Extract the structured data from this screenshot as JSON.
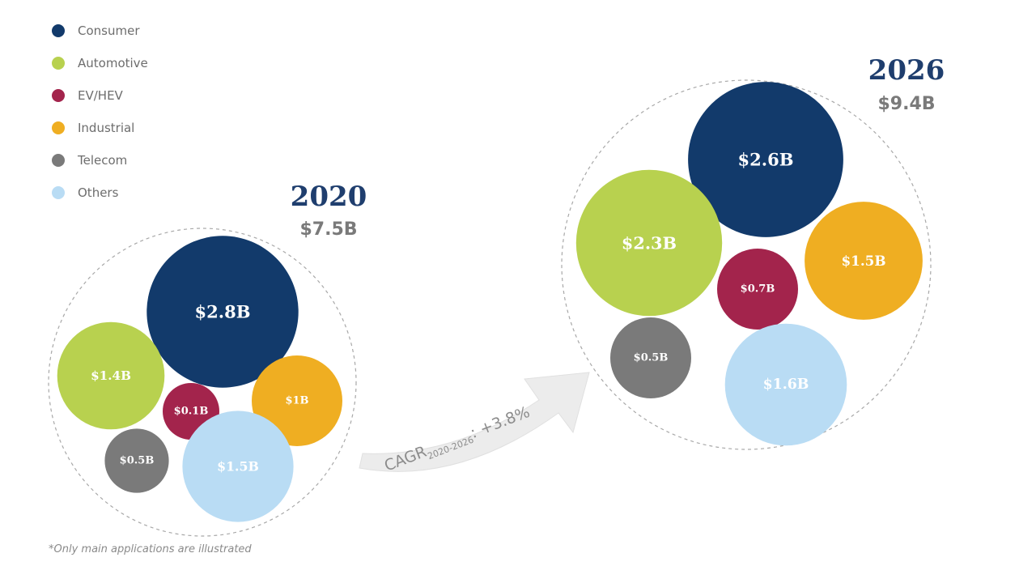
{
  "legend": [
    {
      "name": "Consumer",
      "color": "#123a6b"
    },
    {
      "name": "Automotive",
      "color": "#b8d14f"
    },
    {
      "name": "EV/HEV",
      "color": "#a3244c"
    },
    {
      "name": "Industrial",
      "color": "#efae22"
    },
    {
      "name": "Telecom",
      "color": "#7a7a7a"
    },
    {
      "name": "Others",
      "color": "#b9dcf4"
    }
  ],
  "footnote": "*Only main applications are illustrated",
  "cagr": {
    "prefix": "CAGR",
    "sub": "2020-2026",
    "value": ": +3.8%"
  },
  "chart_data": [
    {
      "type": "bubble",
      "year": "2020",
      "total": "$7.5B",
      "total_value": 7.5,
      "unit": "$B",
      "segments": [
        {
          "category": "Consumer",
          "label": "$2.8B",
          "value": 2.8
        },
        {
          "category": "Automotive",
          "label": "$1.4B",
          "value": 1.4
        },
        {
          "category": "EV/HEV",
          "label": "$0.1B",
          "value": 0.1
        },
        {
          "category": "Industrial",
          "label": "$1B",
          "value": 1.0
        },
        {
          "category": "Telecom",
          "label": "$0.5B",
          "value": 0.5
        },
        {
          "category": "Others",
          "label": "$1.5B",
          "value": 1.5
        }
      ]
    },
    {
      "type": "bubble",
      "year": "2026",
      "total": "$9.4B",
      "total_value": 9.4,
      "unit": "$B",
      "segments": [
        {
          "category": "Consumer",
          "label": "$2.6B",
          "value": 2.6
        },
        {
          "category": "Automotive",
          "label": "$2.3B",
          "value": 2.3
        },
        {
          "category": "EV/HEV",
          "label": "$0.7B",
          "value": 0.7
        },
        {
          "category": "Industrial",
          "label": "$1.5B",
          "value": 1.5
        },
        {
          "category": "Telecom",
          "label": "$0.5B",
          "value": 0.5
        },
        {
          "category": "Others",
          "label": "$1.6B",
          "value": 1.6
        }
      ]
    }
  ]
}
